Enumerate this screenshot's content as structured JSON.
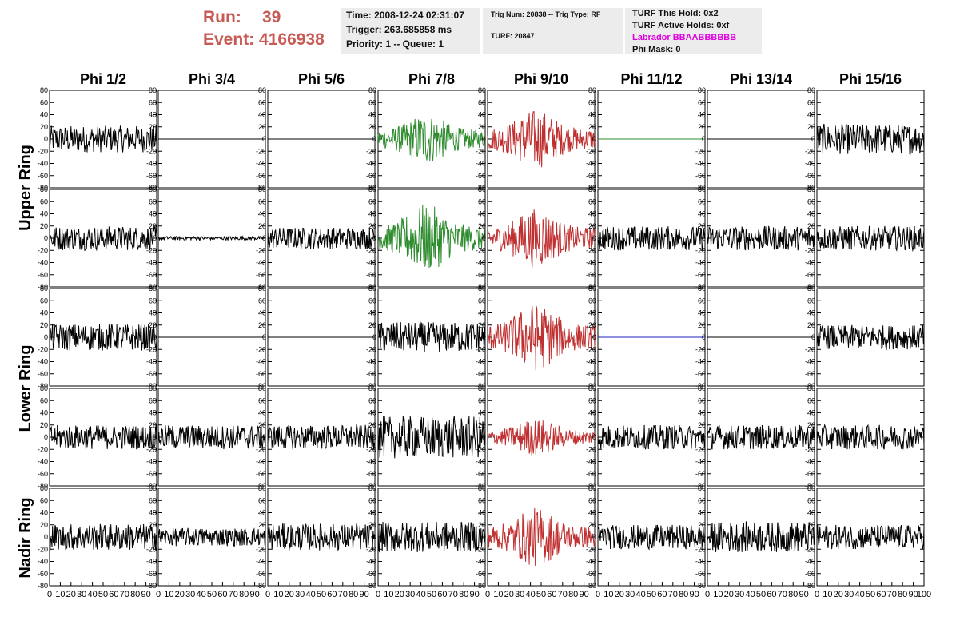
{
  "header": {
    "run_label": "Run:",
    "run_value": "39",
    "event_label": "Event:",
    "event_value": "4166938"
  },
  "info_time": {
    "time": "Time: 2008-12-24 02:31:07",
    "trigger": "Trigger: 263.685858 ms",
    "priority": "Priority: 1 -- Queue: 1"
  },
  "info_trig": {
    "trig": "Trig Num: 20838 -- Trig Type: RF",
    "turf": "TURF: 20847"
  },
  "info_turf": {
    "this_hold": "TURF This Hold: 0x2",
    "active_holds": "TURF Active Holds: 0xf",
    "labrador": "Labrador BBAABBBBBB",
    "phi_mask": "Phi Mask: 0"
  },
  "columns": [
    "Phi 1/2",
    "Phi 3/4",
    "Phi 5/6",
    "Phi 7/8",
    "Phi 9/10",
    "Phi 11/12",
    "Phi 13/14",
    "Phi 15/16"
  ],
  "rings": [
    "Upper Ring",
    "Lower Ring",
    "Nadir Ring"
  ],
  "y_ticks": [
    "80",
    "60",
    "40",
    "20",
    "0",
    "-20",
    "-40",
    "-60",
    "-80"
  ],
  "x_ticks": [
    "0",
    "10",
    "20",
    "30",
    "40",
    "50",
    "60",
    "70",
    "80",
    "90",
    "100"
  ],
  "colors": {
    "trace_default": "#000000",
    "trace_green": "#2e8b2e",
    "trace_red": "#c03030",
    "trace_blue": "#2020c0",
    "run_text": "#c85a55",
    "labrador_text": "#e000e0"
  },
  "chart_data": {
    "type": "line",
    "xlim": [
      0,
      100
    ],
    "ylim": [
      -80,
      80
    ],
    "rows": 5,
    "cols": 8,
    "panels": [
      [
        {
          "amp": 22,
          "color": "black"
        },
        {
          "amp": 0,
          "color": "black"
        },
        {
          "amp": 0,
          "color": "black"
        },
        {
          "amp": 30,
          "color": "green"
        },
        {
          "amp": 35,
          "color": "red"
        },
        {
          "amp": 0,
          "color": "green"
        },
        {
          "amp": 0,
          "color": "black"
        },
        {
          "amp": 25,
          "color": "black"
        }
      ],
      [
        {
          "amp": 20,
          "color": "black"
        },
        {
          "amp": 3,
          "color": "black"
        },
        {
          "amp": 18,
          "color": "black"
        },
        {
          "amp": 40,
          "color": "green"
        },
        {
          "amp": 35,
          "color": "red"
        },
        {
          "amp": 20,
          "color": "black"
        },
        {
          "amp": 20,
          "color": "black"
        },
        {
          "amp": 20,
          "color": "black"
        }
      ],
      [
        {
          "amp": 22,
          "color": "black"
        },
        {
          "amp": 0,
          "color": "black"
        },
        {
          "amp": 0,
          "color": "black"
        },
        {
          "amp": 25,
          "color": "black"
        },
        {
          "amp": 40,
          "color": "red"
        },
        {
          "amp": 0,
          "color": "blue"
        },
        {
          "amp": 0,
          "color": "black"
        },
        {
          "amp": 20,
          "color": "black"
        }
      ],
      [
        {
          "amp": 20,
          "color": "black"
        },
        {
          "amp": 20,
          "color": "black"
        },
        {
          "amp": 20,
          "color": "black"
        },
        {
          "amp": 35,
          "color": "black"
        },
        {
          "amp": 22,
          "color": "red"
        },
        {
          "amp": 20,
          "color": "black"
        },
        {
          "amp": 20,
          "color": "black"
        },
        {
          "amp": 20,
          "color": "black"
        }
      ],
      [
        {
          "amp": 22,
          "color": "black"
        },
        {
          "amp": 15,
          "color": "black"
        },
        {
          "amp": 22,
          "color": "black"
        },
        {
          "amp": 25,
          "color": "black"
        },
        {
          "amp": 35,
          "color": "red"
        },
        {
          "amp": 20,
          "color": "black"
        },
        {
          "amp": 25,
          "color": "black"
        },
        {
          "amp": 20,
          "color": "black"
        }
      ]
    ]
  }
}
